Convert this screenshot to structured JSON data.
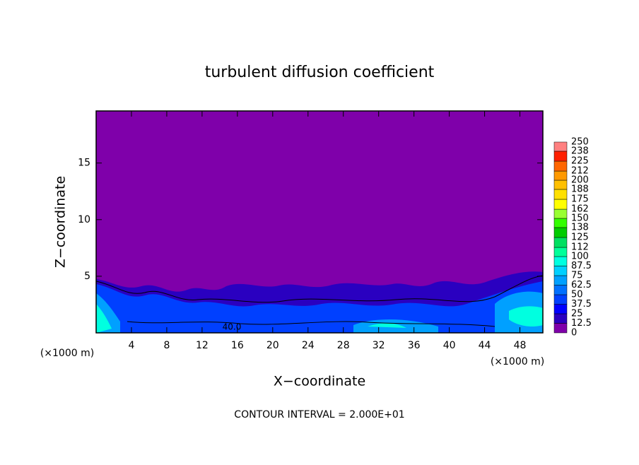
{
  "chart_data": {
    "type": "contour",
    "title": "turbulent diffusion coefficient",
    "x_label": "X−coordinate",
    "y_label": "Z−coordinate",
    "y_unit": "(×1000 m)",
    "x_unit": "(×1000 m)",
    "xlim": [
      0,
      50.6
    ],
    "xticks": [
      4,
      8,
      12,
      16,
      20,
      24,
      28,
      32,
      36,
      40,
      44,
      48
    ],
    "ylim": [
      0,
      19.6
    ],
    "yticks": [
      5,
      10,
      15
    ],
    "contour_label": "40.0",
    "footnote": "CONTOUR INTERVAL = 2.000E+01",
    "colorbar": {
      "levels": [
        0,
        12.5,
        25,
        37.5,
        50,
        62.5,
        75,
        87.5,
        100,
        112,
        125,
        138,
        150,
        162,
        175,
        188,
        200,
        212,
        225,
        238,
        250
      ],
      "colors": [
        "#7f00aa",
        "#2a00c0",
        "#0000ff",
        "#0040ff",
        "#0070ff",
        "#00a0ff",
        "#00d0ff",
        "#00ffe0",
        "#00ff99",
        "#00e060",
        "#00cc00",
        "#33ff00",
        "#99ff33",
        "#ffff00",
        "#ffe000",
        "#ffc000",
        "#ff9900",
        "#ff6600",
        "#ff2000",
        "#ff8080"
      ]
    }
  }
}
